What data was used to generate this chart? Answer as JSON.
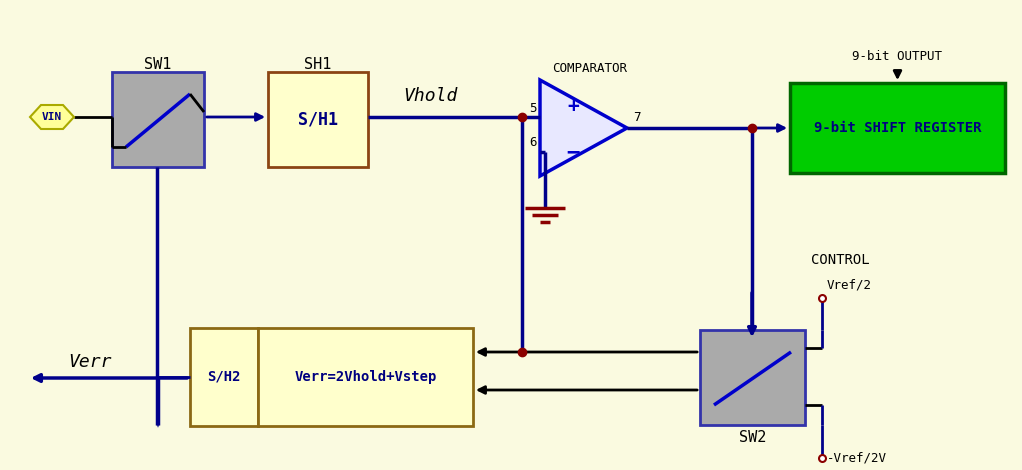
{
  "bg_color": "#FAFAE0",
  "dark_blue": "#00008B",
  "med_blue": "#0000CC",
  "black": "#000000",
  "dark_red": "#8B0000",
  "gray": "#AAAAAA",
  "yellow_fill": "#FFFFCC",
  "green_fill": "#00CC00",
  "green_edge": "#006600",
  "vin_fill": "#FFFF99",
  "sw_border": "#3333AA",
  "sh1_border": "#8B4513",
  "comparator_label": "COMPARATOR",
  "shift_reg_label": "9-bit SHIFT REGISTER",
  "output_label": "9-bit OUTPUT",
  "sh2_label": "S/H2",
  "verr_eq_label": "Verr=2Vhold+Vstep",
  "control_label": "CONTROL",
  "sw2_label": "SW2",
  "vin_label": "VIN",
  "vhold_label": "Vhold",
  "verr_label": "Verr",
  "vref2_label": "Vref/2",
  "vref2neg_label": "-Vref/2V",
  "sh1_label": "S/H1",
  "sw1_label": "SW1",
  "sh1_title": "SH1"
}
